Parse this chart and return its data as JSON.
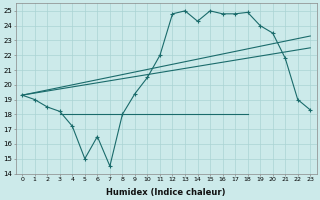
{
  "xlabel": "Humidex (Indice chaleur)",
  "x_ticks": [
    0,
    1,
    2,
    3,
    4,
    5,
    6,
    7,
    8,
    9,
    10,
    11,
    12,
    13,
    14,
    15,
    16,
    17,
    18,
    19,
    20,
    21,
    22,
    23
  ],
  "ylim": [
    14,
    25.5
  ],
  "yticks": [
    14,
    15,
    16,
    17,
    18,
    19,
    20,
    21,
    22,
    23,
    24,
    25
  ],
  "xlim": [
    -0.5,
    23.5
  ],
  "bg_color": "#cceaea",
  "grid_color": "#aad4d4",
  "line_color": "#1a6b6b",
  "main_x": [
    0,
    1,
    2,
    3,
    4,
    5,
    6,
    7,
    8,
    9,
    10,
    11,
    12,
    13,
    14,
    15,
    16,
    17,
    18,
    19,
    20,
    21,
    22,
    23
  ],
  "main_y": [
    19.3,
    19.0,
    18.5,
    18.2,
    17.2,
    15.0,
    16.5,
    14.5,
    18.0,
    19.4,
    20.5,
    22.0,
    24.8,
    25.0,
    24.3,
    25.0,
    24.8,
    24.8,
    24.9,
    24.0,
    23.5,
    21.8,
    19.0,
    18.3
  ],
  "trend1_x": [
    0,
    23
  ],
  "trend1_y": [
    19.3,
    23.3
  ],
  "trend2_x": [
    0,
    23
  ],
  "trend2_y": [
    19.3,
    22.5
  ],
  "hline_x": [
    3,
    18
  ],
  "hline_y": [
    18.0,
    18.0
  ]
}
